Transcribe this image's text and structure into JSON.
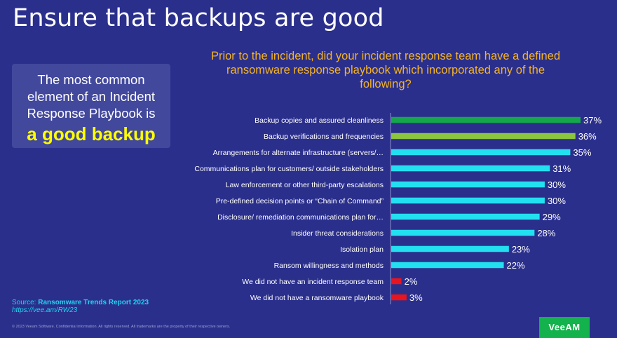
{
  "slide": {
    "title": "Ensure that backups are good",
    "callout_line1": "The most common",
    "callout_line2": "element of an Incident",
    "callout_line3": "Response Playbook is",
    "callout_highlight": "a good backup",
    "source_label": "Source:",
    "source_title": "Ransomware Trends Report 2023",
    "source_url": "https://vee.am/RW23",
    "footer": "© 2023 Veeam Software. Confidential information. All rights reserved. All trademarks are the property of their respective owners.",
    "logo_text": "VeeAM"
  },
  "chart_data": {
    "type": "bar",
    "orientation": "horizontal",
    "title": "Prior to the incident, did your incident response team have a defined ransomware response playbook which incorporated any of the following?",
    "categories": [
      "Backup copies and assured cleanliness",
      "Backup verifications and frequencies",
      "Arrangements for alternate infrastructure (servers/…",
      "Communications plan for customers/ outside stakeholders",
      "Law enforcement or other third-party escalations",
      "Pre-defined decision points or “Chain of Command”",
      "Disclosure/ remediation communications plan for…",
      "Insider threat considerations",
      "Isolation plan",
      "Ransom willingness and methods",
      "We did not have an incident response team",
      "We did not have a ransomware playbook"
    ],
    "values": [
      37,
      36,
      35,
      31,
      30,
      30,
      29,
      28,
      23,
      22,
      2,
      3
    ],
    "value_labels": [
      "37%",
      "36%",
      "35%",
      "31%",
      "30%",
      "30%",
      "29%",
      "28%",
      "23%",
      "22%",
      "2%",
      "3%"
    ],
    "colors": [
      "#14a84a",
      "#8cc63f",
      "#22e0f0",
      "#22e0f0",
      "#22e0f0",
      "#22e0f0",
      "#22e0f0",
      "#22e0f0",
      "#22e0f0",
      "#22e0f0",
      "#e8141e",
      "#e8141e"
    ],
    "xlim": [
      0,
      40
    ],
    "grid": false,
    "legend": "none"
  }
}
